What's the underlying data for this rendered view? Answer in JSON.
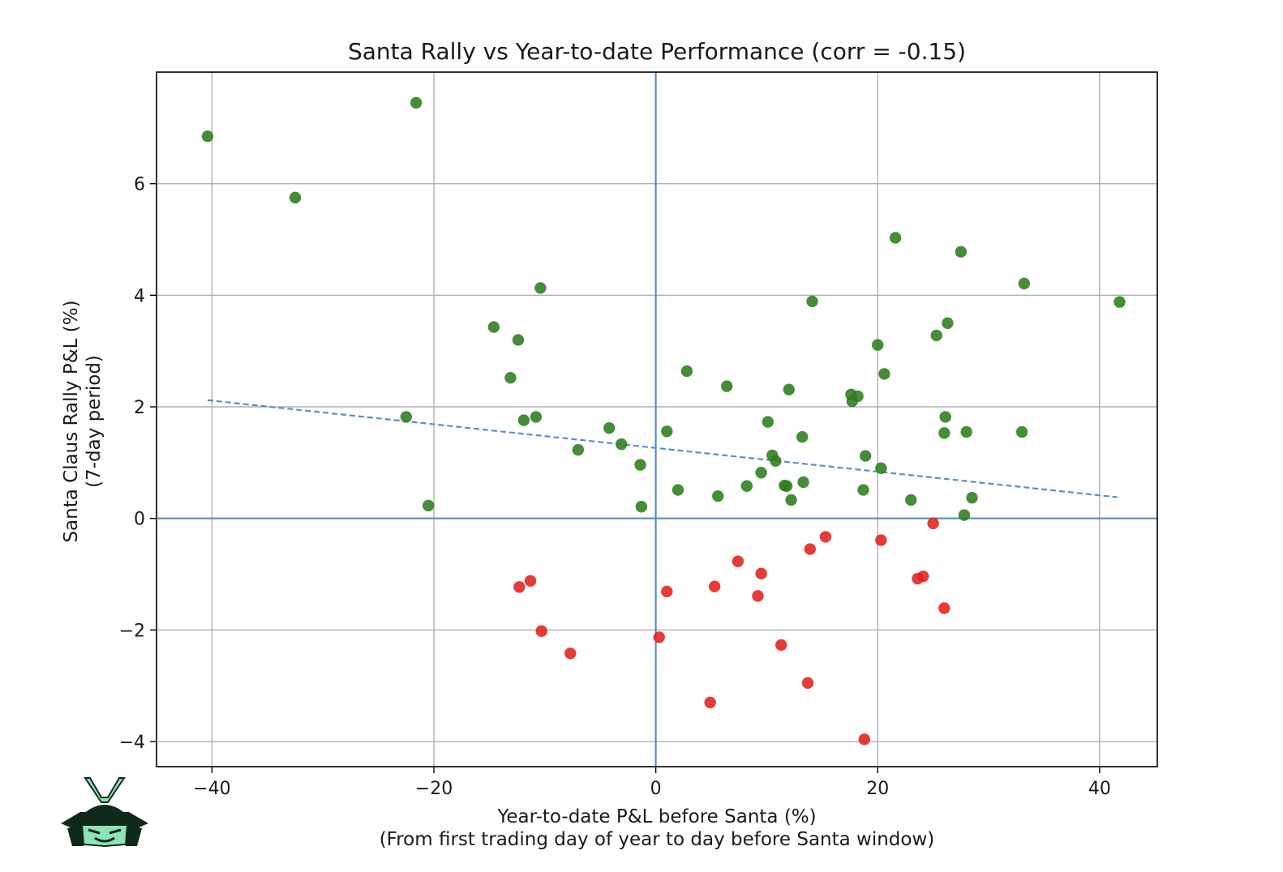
{
  "chart_data": {
    "type": "scatter",
    "title": "Santa Rally vs Year-to-date Performance (corr = -0.15)",
    "xlabel": [
      "Year-to-date P&L before Santa (%)",
      "(From first trading day of year to day before Santa window)"
    ],
    "ylabel": [
      "Santa Claus Rally P&L (%)",
      "(7-day period)"
    ],
    "xlim": [
      -45,
      45.2
    ],
    "ylim": [
      -4.45,
      8.0
    ],
    "xticks": [
      -40,
      -20,
      0,
      20,
      40
    ],
    "yticks": [
      -4,
      -2,
      0,
      2,
      4,
      6
    ],
    "xtick_labels": [
      "−40",
      "−20",
      "0",
      "20",
      "40"
    ],
    "ytick_labels": [
      "−4",
      "−2",
      "0",
      "2",
      "4",
      "6"
    ],
    "grid": true,
    "reference_lines": {
      "x": 0,
      "y": 0,
      "color": "#4a86c8"
    },
    "trend_line": {
      "x": [
        -40.4,
        41.6
      ],
      "y": [
        2.12,
        0.38
      ],
      "style": "dashed",
      "color": "#5b8fc7"
    },
    "colors": {
      "positive": "#2e7d1e",
      "negative": "#e3211c"
    },
    "series": [
      {
        "class": "positive",
        "x": [
          -40.4,
          -21.6,
          -32.5,
          -10.4,
          -14.6,
          -12.4,
          -13.1,
          -22.5,
          -11.9,
          -10.8,
          -7.0,
          -4.2,
          -3.1,
          -1.4,
          -1.3,
          -20.5,
          1.0,
          2.8,
          2.0,
          6.4,
          5.6,
          8.2,
          9.5,
          10.1,
          10.5,
          10.8,
          11.6,
          11.8,
          12.2,
          12.0,
          13.2,
          13.3,
          14.1,
          17.6,
          17.7,
          18.2,
          18.7,
          18.9,
          20.0,
          20.6,
          20.3,
          21.6,
          23.0,
          25.3,
          26.0,
          26.1,
          26.3,
          27.5,
          27.8,
          28.0,
          28.5,
          33.0,
          33.2,
          41.8
        ],
        "y": [
          6.85,
          7.45,
          5.75,
          4.13,
          3.43,
          3.2,
          2.52,
          1.82,
          1.76,
          1.82,
          1.23,
          1.62,
          1.33,
          0.96,
          0.21,
          0.23,
          1.56,
          2.64,
          0.51,
          2.37,
          0.4,
          0.58,
          0.82,
          1.73,
          1.13,
          1.03,
          0.59,
          0.58,
          0.33,
          2.31,
          1.46,
          0.65,
          3.89,
          2.22,
          2.1,
          2.19,
          0.51,
          1.12,
          3.11,
          2.59,
          0.9,
          5.03,
          0.33,
          3.28,
          1.53,
          1.82,
          3.5,
          4.78,
          0.06,
          1.55,
          0.37,
          1.55,
          4.21,
          3.88
        ]
      },
      {
        "class": "negative",
        "x": [
          -12.3,
          -11.3,
          -10.3,
          -7.7,
          0.3,
          1.0,
          4.9,
          5.3,
          7.4,
          9.2,
          9.5,
          11.3,
          13.7,
          13.9,
          15.3,
          18.8,
          20.3,
          23.6,
          24.1,
          25.0,
          26.0
        ],
        "y": [
          -1.23,
          -1.12,
          -2.02,
          -2.42,
          -2.13,
          -1.31,
          -3.3,
          -1.22,
          -0.77,
          -1.39,
          -0.99,
          -2.27,
          -2.95,
          -0.55,
          -0.33,
          -3.96,
          -0.39,
          -1.08,
          -1.04,
          -0.09,
          -1.61
        ]
      }
    ]
  },
  "logo": {
    "name": "samurai-helmet-logo",
    "colors": [
      "#0f2a1a",
      "#8fe3b8"
    ]
  }
}
